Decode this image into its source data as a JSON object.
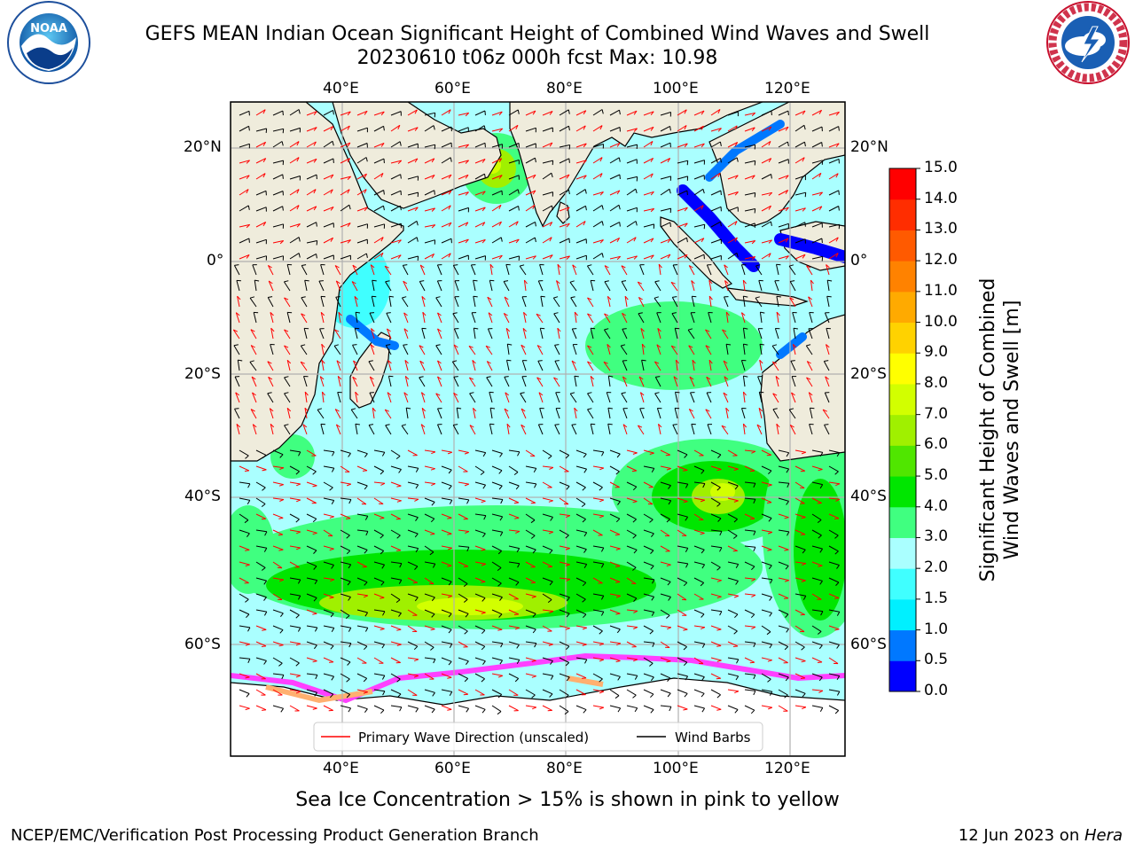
{
  "title": {
    "line1": "GEFS MEAN Indian Ocean Significant Height of Combined Wind Waves and Swell",
    "line2": "20230610 t06z 000h fcst   Max: 10.98"
  },
  "logos": {
    "left": {
      "icon": "noaa-logo",
      "text": "NOAA"
    },
    "right": {
      "icon": "nws-logo",
      "text": "NATIONAL WEATHER SERVICE"
    }
  },
  "map": {
    "lon_range": [
      20,
      130
    ],
    "lat_range": [
      -73,
      28
    ],
    "lon_ticks": [
      "40°E",
      "60°E",
      "80°E",
      "100°E",
      "120°E"
    ],
    "lat_ticks_left": [
      "20°N",
      "0°",
      "20°S",
      "40°S",
      "60°S"
    ],
    "lat_ticks_right": [
      "20°N",
      "0°",
      "20°S",
      "40°S",
      "60°S"
    ],
    "land_color": "#efecdc",
    "legend": {
      "items": [
        {
          "label": "Primary Wave Direction (unscaled)",
          "color": "#ff0000"
        },
        {
          "label": "Wind Barbs",
          "color": "#000000"
        }
      ]
    }
  },
  "colorbar": {
    "label_line1": "Significant Height of Combined",
    "label_line2": "Wind Waves and Swell [m]",
    "ticks": [
      "0.0",
      "0.5",
      "1.0",
      "1.5",
      "2.0",
      "3.0",
      "4.0",
      "5.0",
      "6.0",
      "7.0",
      "8.0",
      "9.0",
      "10.0",
      "11.0",
      "12.0",
      "13.0",
      "14.0",
      "15.0"
    ],
    "colors": [
      "#0000ff",
      "#0078ff",
      "#00f0ff",
      "#40ffff",
      "#aaffff",
      "#40ff80",
      "#00e600",
      "#50e600",
      "#a0f000",
      "#d2ff00",
      "#ffff00",
      "#ffd200",
      "#ffaa00",
      "#ff8200",
      "#ff5a00",
      "#ff2d00",
      "#ff0000"
    ]
  },
  "note": "Sea Ice Concentration > 15% is shown in pink to yellow",
  "footer": {
    "left": "NCEP/EMC/Verification Post Processing Product Generation Branch",
    "right_prefix": "12 Jun 2023 on ",
    "right_italic": "Hera"
  }
}
